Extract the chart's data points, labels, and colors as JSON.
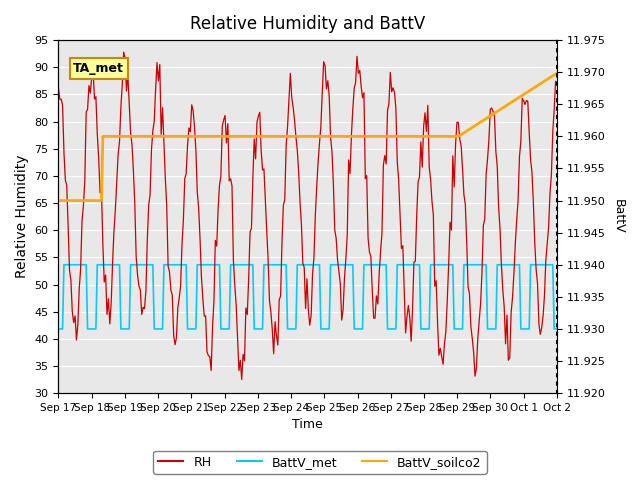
{
  "title": "Relative Humidity and BattV",
  "xlabel": "Time",
  "ylabel_left": "Relative Humidity",
  "ylabel_right": "BattV",
  "ylim_left": [
    30,
    95
  ],
  "ylim_right": [
    11.92,
    11.975
  ],
  "yticks_left": [
    30,
    35,
    40,
    45,
    50,
    55,
    60,
    65,
    70,
    75,
    80,
    85,
    90,
    95
  ],
  "yticks_right": [
    11.92,
    11.925,
    11.93,
    11.935,
    11.94,
    11.945,
    11.95,
    11.955,
    11.96,
    11.965,
    11.97,
    11.975
  ],
  "bg_color": "#e8e8e8",
  "annotation_text": "TA_met",
  "annotation_bg": "#ffff99",
  "annotation_border": "#cc8800",
  "rh_color": "#cc0000",
  "battv_met_color": "#00ccff",
  "battv_soilco2_color": "#ffaa00",
  "legend_rh_label": "RH",
  "legend_battv_met_label": "BattV_met",
  "legend_battv_soilco2_label": "BattV_soilco2",
  "xticklabels": [
    "Sep 17",
    "Sep 18",
    "Sep 19",
    "Sep 20",
    "Sep 21",
    "Sep 22",
    "Sep 23",
    "Sep 24",
    "Sep 25",
    "Sep 26",
    "Sep 27",
    "Sep 28",
    "Sep 29",
    "Sep 30",
    "Oct 1",
    "Oct 2"
  ],
  "n_days": 15,
  "rh_data_seed": 42,
  "title_fontsize": 12,
  "axis_label_fontsize": 10,
  "tick_fontsize": 8
}
